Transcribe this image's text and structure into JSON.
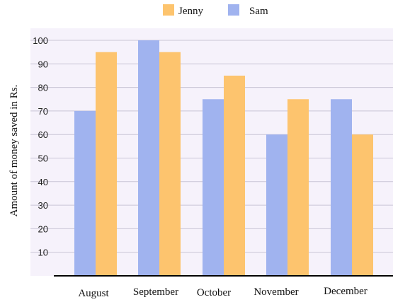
{
  "chart_data": {
    "type": "bar",
    "categories": [
      "August",
      "September",
      "October",
      "November",
      "December"
    ],
    "series": [
      {
        "name": "Sam",
        "color": "#a0b3ef",
        "values": [
          70,
          100,
          75,
          60,
          75
        ]
      },
      {
        "name": "Jenny",
        "color": "#fdc46e",
        "values": [
          95,
          95,
          85,
          75,
          60
        ]
      }
    ],
    "ylabel": "Amount of  money saved in Rs.",
    "xlabel": "",
    "ylim": [
      0,
      100
    ],
    "yticks": [
      10,
      20,
      30,
      40,
      50,
      60,
      70,
      80,
      90,
      100
    ],
    "legend_order": [
      "Jenny",
      "Sam"
    ],
    "legend_position": "top",
    "plot_background": "#f6f2fb",
    "grid": true
  }
}
